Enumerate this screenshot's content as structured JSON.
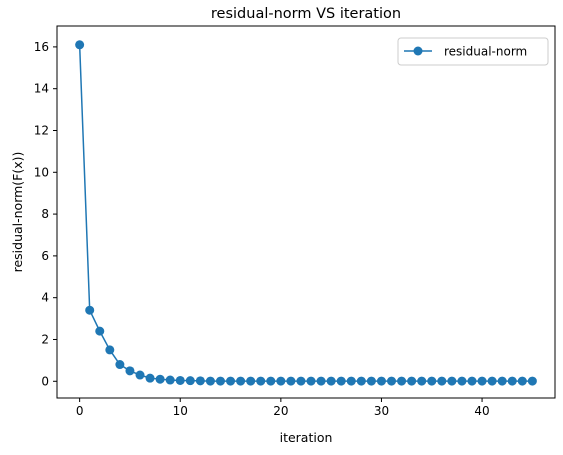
{
  "chart_data": {
    "type": "line",
    "title": "residual-norm VS iteration",
    "xlabel": "iteration",
    "ylabel": "residual-norm(F(x))",
    "xlim": [
      -2.25,
      47.25
    ],
    "ylim": [
      -0.8,
      17.0
    ],
    "xticks": [
      0,
      10,
      20,
      30,
      40
    ],
    "yticks": [
      0,
      2,
      4,
      6,
      8,
      10,
      12,
      14,
      16
    ],
    "grid": false,
    "legend_position": "top-right",
    "series": [
      {
        "name": "residual-norm",
        "color": "#1f77b4",
        "marker": "circle",
        "x": [
          0,
          1,
          2,
          3,
          4,
          5,
          6,
          7,
          8,
          9,
          10,
          11,
          12,
          13,
          14,
          15,
          16,
          17,
          18,
          19,
          20,
          21,
          22,
          23,
          24,
          25,
          26,
          27,
          28,
          29,
          30,
          31,
          32,
          33,
          34,
          35,
          36,
          37,
          38,
          39,
          40,
          41,
          42,
          43,
          44,
          45
        ],
        "y": [
          16.1,
          3.4,
          2.4,
          1.5,
          0.8,
          0.5,
          0.3,
          0.15,
          0.1,
          0.06,
          0.04,
          0.03,
          0.02,
          0.01,
          0.01,
          0.01,
          0.01,
          0.01,
          0.01,
          0.01,
          0.01,
          0.01,
          0.01,
          0.01,
          0.01,
          0.01,
          0.01,
          0.01,
          0.01,
          0.01,
          0.01,
          0.01,
          0.01,
          0.01,
          0.01,
          0.01,
          0.01,
          0.01,
          0.01,
          0.01,
          0.01,
          0.01,
          0.01,
          0.01,
          0.01,
          0.01
        ]
      }
    ]
  }
}
